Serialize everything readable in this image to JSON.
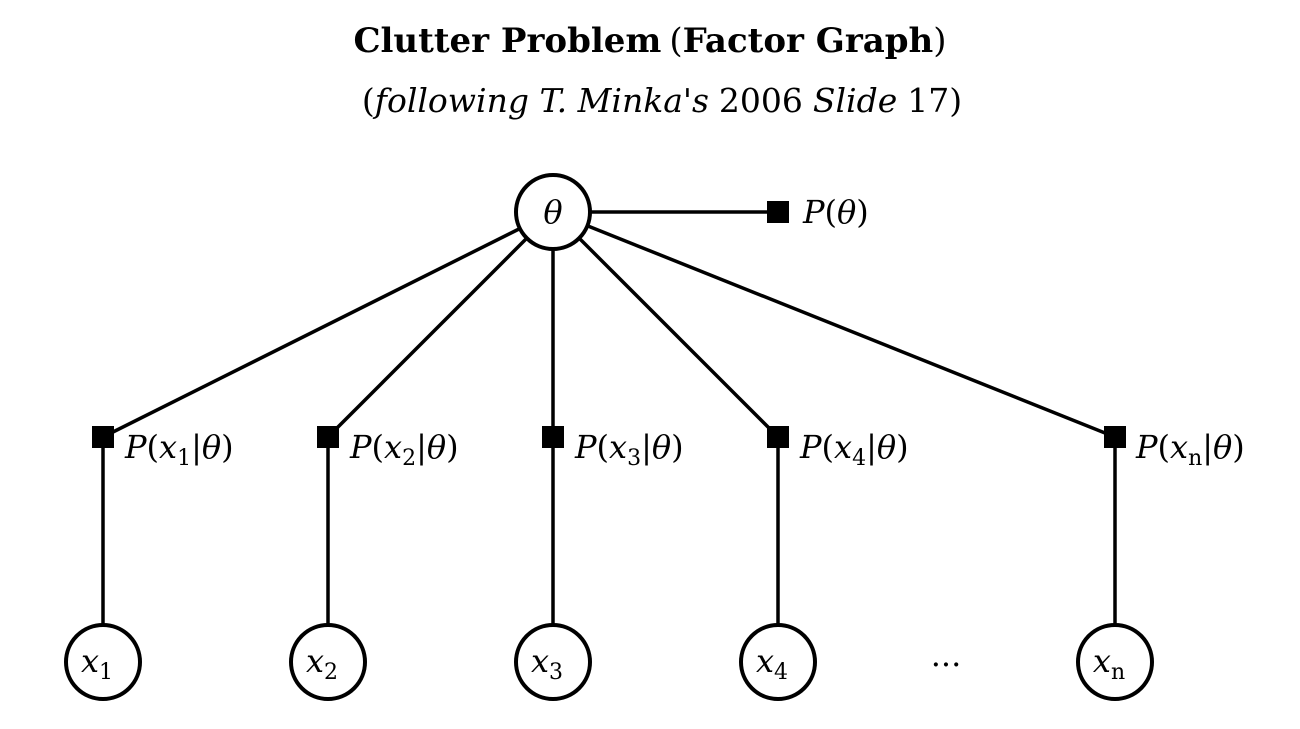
{
  "title": {
    "bold_a": "Clutter Problem",
    "open_paren": "(",
    "bold_b": "Factor Graph",
    "close_paren": ")"
  },
  "subtitle": {
    "open_paren": "(",
    "italic_a": "following T. Minka's",
    "year": "2006",
    "italic_b": "Slide",
    "number": "17",
    "close_paren": ")"
  },
  "theta_node": {
    "symbol": "θ"
  },
  "prior_factor": {
    "script_p": "P",
    "open": "(",
    "arg": "θ",
    "close": ")"
  },
  "observations": [
    {
      "var": "x",
      "sub": "1"
    },
    {
      "var": "x",
      "sub": "2"
    },
    {
      "var": "x",
      "sub": "3"
    },
    {
      "var": "x",
      "sub": "4"
    },
    {
      "var": "x",
      "sub": "n"
    }
  ],
  "likelihood_factor": {
    "script_p": "P",
    "open": "(",
    "bar": "|",
    "cond": "θ",
    "close": ")"
  },
  "ellipsis": "..."
}
